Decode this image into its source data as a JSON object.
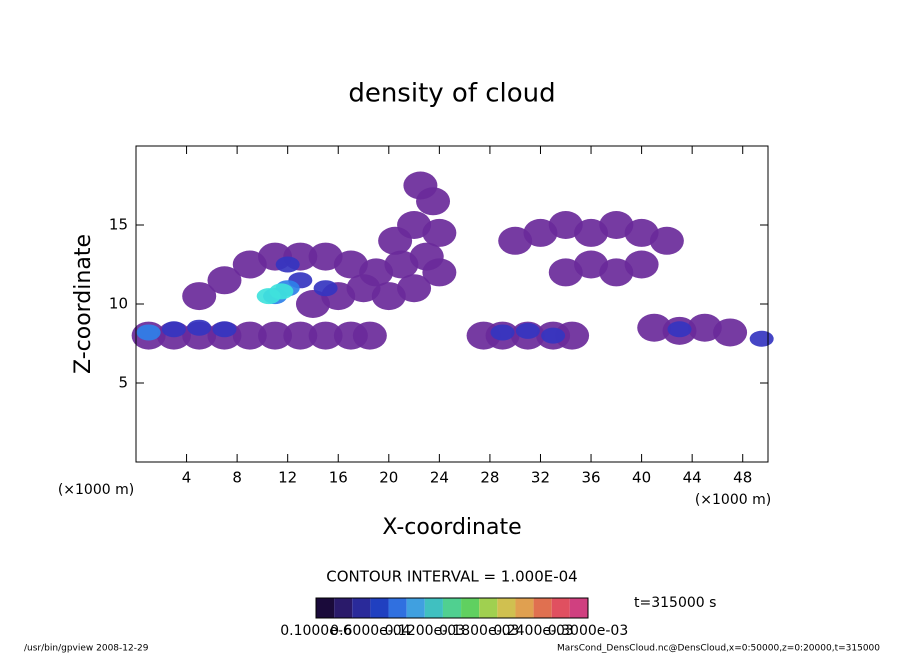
{
  "chart_data": {
    "type": "contour",
    "title": "density of cloud",
    "xlabel": "X-coordinate",
    "ylabel": "Z-coordinate",
    "xunit_left": "(×1000 m)",
    "xunit_right": "(×1000 m)",
    "xlim": [
      0,
      50
    ],
    "ylim": [
      0,
      20
    ],
    "xticks": [
      4,
      8,
      12,
      16,
      20,
      24,
      28,
      32,
      36,
      40,
      44,
      48
    ],
    "yticks": [
      5,
      10,
      15
    ],
    "levels": [
      0,
      5e-05,
      9e-05,
      0.00012
    ],
    "level_colors": [
      "#6a2a9a",
      "#3535c0",
      "#2f80e8",
      "#3fe2dc"
    ],
    "x": [
      1,
      3,
      5,
      7,
      9,
      11,
      13,
      15,
      17,
      18.5,
      5,
      7,
      9,
      11,
      13,
      15,
      17,
      19,
      21,
      23,
      14,
      16,
      18,
      20,
      22,
      24,
      20.5,
      22,
      23.5,
      22.5,
      24,
      27.5,
      29,
      31,
      33,
      34.5,
      30,
      32,
      34,
      36,
      38,
      40,
      42,
      34,
      36,
      38,
      40,
      41,
      43,
      45,
      47,
      49.5,
      29,
      31,
      33,
      43,
      1,
      3,
      5,
      7,
      12,
      13,
      15,
      11,
      12,
      10.5,
      11.5
    ],
    "z": [
      8,
      8,
      8,
      8,
      8,
      8,
      8,
      8,
      8,
      8,
      10.5,
      11.5,
      12.5,
      13,
      13,
      13,
      12.5,
      12,
      12.5,
      13,
      10,
      10.5,
      11,
      10.5,
      11,
      12,
      14,
      15,
      16.5,
      17.5,
      14.5,
      8,
      8,
      8,
      8,
      8,
      14,
      14.5,
      15,
      14.5,
      15,
      14.5,
      14,
      12,
      12.5,
      12,
      12.5,
      8.5,
      8.3,
      8.5,
      8.2,
      7.8,
      8.2,
      8.3,
      8,
      8.4,
      8.2,
      8.4,
      8.5,
      8.4,
      12.5,
      11.5,
      11,
      10.5,
      11,
      10.5,
      10.8
    ],
    "values": [
      3e-05,
      3e-05,
      3e-05,
      3e-05,
      3e-05,
      3e-05,
      3e-05,
      3e-05,
      3e-05,
      3e-05,
      3e-05,
      3e-05,
      3e-05,
      3e-05,
      3e-05,
      3e-05,
      3e-05,
      3e-05,
      3e-05,
      3e-05,
      3e-05,
      3e-05,
      3e-05,
      3e-05,
      3e-05,
      3e-05,
      3e-05,
      3e-05,
      3e-05,
      3e-05,
      3e-05,
      3e-05,
      3e-05,
      3e-05,
      3e-05,
      3e-05,
      3e-05,
      3e-05,
      3e-05,
      3e-05,
      3e-05,
      3e-05,
      3e-05,
      3e-05,
      3e-05,
      3e-05,
      3e-05,
      3e-05,
      3e-05,
      3e-05,
      3e-05,
      7e-05,
      7e-05,
      7e-05,
      7e-05,
      7e-05,
      0.0001,
      7e-05,
      7e-05,
      7e-05,
      7e-05,
      7e-05,
      7e-05,
      0.0001,
      0.0001,
      0.00014,
      0.00014
    ],
    "contour_text": "CONTOUR INTERVAL = 1.000E-04",
    "time_text": "t=315000 s",
    "colorbar_colors": [
      "#1a0a3a",
      "#2a1a6a",
      "#2a2a9a",
      "#2040c0",
      "#3070e0",
      "#40a0e0",
      "#40c0c0",
      "#50d090",
      "#60d060",
      "#a0d050",
      "#d0c050",
      "#e0a050",
      "#e07050",
      "#e05060",
      "#d04080"
    ],
    "colorbar_labels": [
      "0.1000e-6",
      "0.6000e-04",
      "0.1200e-03",
      "0.1800e-03",
      "0.2400e-03",
      "0.3000e-03"
    ],
    "footer_left": "/usr/bin/gpview   2008-12-29",
    "footer_right": "MarsCond_DensCloud.nc@DensCloud,x=0:50000,z=0:20000,t=315000"
  }
}
